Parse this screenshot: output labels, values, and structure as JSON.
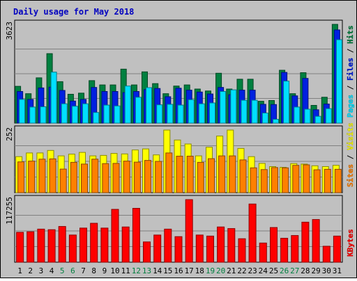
{
  "chart_data": {
    "type": "bar",
    "title": "Daily usage for May 2018",
    "categories": [
      "1",
      "2",
      "3",
      "4",
      "5",
      "6",
      "7",
      "8",
      "9",
      "10",
      "11",
      "12",
      "13",
      "14",
      "15",
      "16",
      "17",
      "18",
      "19",
      "20",
      "21",
      "22",
      "23",
      "24",
      "25",
      "26",
      "27",
      "28",
      "29",
      "30",
      "31"
    ],
    "weekend_days": [
      "5",
      "6",
      "12",
      "13",
      "19",
      "20",
      "26",
      "27"
    ],
    "panels": [
      {
        "id": "top",
        "max_label": "3623",
        "ymax": 3623,
        "series": [
          {
            "name": "Hits",
            "color": "#008040",
            "values": [
              1350,
              1080,
              1660,
              2550,
              1520,
              1060,
              1100,
              1560,
              1400,
              1400,
              1980,
              1400,
              1880,
              1450,
              1080,
              1360,
              1400,
              1250,
              1180,
              1830,
              1250,
              1610,
              1610,
              800,
              830,
              1940,
              1080,
              1850,
              650,
              950,
              3623
            ]
          },
          {
            "name": "Files",
            "color": "#0020e0",
            "values": [
              1160,
              870,
              1290,
              1320,
              1200,
              810,
              870,
              1310,
              1160,
              1160,
              1120,
              1160,
              1230,
              1270,
              970,
              1280,
              1210,
              1140,
              1070,
              1310,
              1040,
              1210,
              1210,
              690,
              680,
              1860,
              1000,
              1640,
              490,
              700,
              3420
            ]
          },
          {
            "name": "Pages",
            "color": "#00e0ff",
            "values": [
              870,
              590,
              600,
              1870,
              710,
              620,
              710,
              390,
              660,
              630,
              1360,
              950,
              1300,
              670,
              690,
              660,
              860,
              710,
              740,
              1160,
              1220,
              840,
              840,
              370,
              140,
              1540,
              590,
              510,
              250,
              530,
              3060
            ]
          }
        ],
        "legend": [
          "Pages",
          " / ",
          "Files",
          " / ",
          "Hits"
        ]
      },
      {
        "id": "mid",
        "max_label": "252",
        "ymax": 252,
        "series": [
          {
            "name": "Visits",
            "color": "#ffff00",
            "values": [
              145,
              160,
              160,
              170,
              148,
              155,
              162,
              148,
              150,
              158,
              156,
              172,
              176,
              152,
              252,
              212,
              196,
              148,
              183,
              228,
              252,
              178,
              145,
              118,
              105,
              102,
              117,
              115,
              108,
              105,
              110
            ]
          },
          {
            "name": "Sites",
            "color": "#ff8000",
            "values": [
              124,
              127,
              135,
              136,
              95,
              122,
              115,
              135,
              117,
              118,
              127,
              123,
              130,
              126,
              160,
              147,
              147,
              122,
              137,
              148,
              148,
              132,
              100,
              93,
              101,
              100,
              110,
              112,
              92,
              94,
              94
            ]
          }
        ],
        "legend": [
          "Sites",
          " / ",
          "Visits"
        ]
      },
      {
        "id": "bottom",
        "max_label": "117255",
        "ymax": 117255,
        "series": [
          {
            "name": "KBytes",
            "color": "#ff0000",
            "values": [
              56000,
              57000,
              62000,
              61000,
              67000,
              51000,
              64000,
              73000,
              64000,
              99000,
              66000,
              101000,
              38000,
              51000,
              62000,
              48000,
              117255,
              51000,
              49000,
              66000,
              63000,
              44000,
              109000,
              36000,
              65000,
              45000,
              50000,
              75000,
              80000,
              30000,
              49000
            ]
          }
        ],
        "legend": [
          "KBytes"
        ]
      }
    ]
  }
}
